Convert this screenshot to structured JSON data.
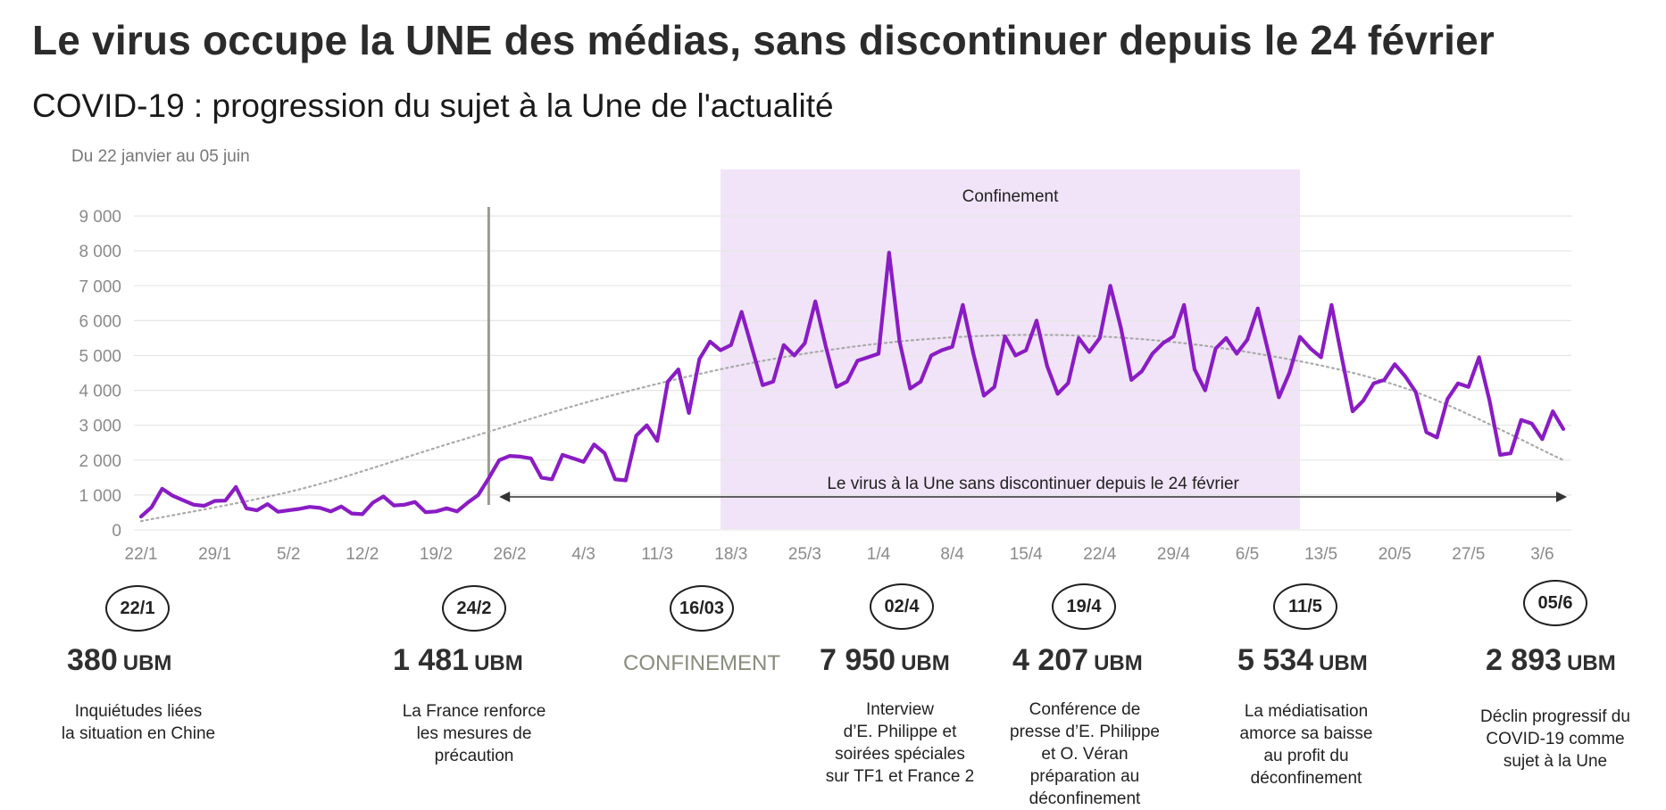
{
  "title": "Le virus occupe la UNE des médias, sans discontinuer depuis le 24 février",
  "subtitle": "COVID-19 : progression du sujet à la Une de l'actualité",
  "period": "Du 22 janvier au 05 juin",
  "colors": {
    "line": "#8a1cc4",
    "band": "#f1e4f8",
    "trend": "#aaaaaa",
    "marker": "#9b9b8f",
    "grid": "#e6e6e6"
  },
  "chart_data": {
    "type": "line",
    "title": "COVID-19 : progression du sujet à la Une de l'actualité",
    "xlabel": "",
    "ylabel": "",
    "ylim": [
      0,
      9000
    ],
    "y_ticks": [
      "0",
      "1 000",
      "2 000",
      "3 000",
      "4 000",
      "5 000",
      "6 000",
      "7 000",
      "8 000",
      "9 000"
    ],
    "x_start": "22/1",
    "x_ticks": [
      "22/1",
      "29/1",
      "5/2",
      "12/2",
      "19/2",
      "26/2",
      "4/3",
      "11/3",
      "18/3",
      "25/3",
      "1/4",
      "8/4",
      "15/4",
      "22/4",
      "29/4",
      "6/5",
      "13/5",
      "20/5",
      "27/5",
      "3/6"
    ],
    "grid": true,
    "band": {
      "label": "Confinement",
      "from_day": 55,
      "to_day": 110
    },
    "vertical_marker_day": 33,
    "arrow": {
      "label": "Le virus à la Une sans discontinuer depuis le 24 février",
      "from_day": 34,
      "to_day": 135
    },
    "series": [
      {
        "name": "",
        "values": [
          380,
          650,
          1180,
          980,
          850,
          720,
          690,
          830,
          840,
          1230,
          620,
          560,
          740,
          520,
          560,
          600,
          660,
          630,
          530,
          670,
          470,
          450,
          780,
          960,
          700,
          720,
          800,
          510,
          530,
          620,
          530,
          780,
          1000,
          1481,
          2000,
          2120,
          2100,
          2050,
          1500,
          1450,
          2150,
          2050,
          1950,
          2450,
          2200,
          1450,
          1420,
          2700,
          3000,
          2550,
          4250,
          4600,
          3350,
          4900,
          5400,
          5150,
          5300,
          6250,
          5200,
          4150,
          4250,
          5300,
          5000,
          5350,
          6550,
          5250,
          4100,
          4250,
          4850,
          4950,
          5050,
          7950,
          5400,
          4050,
          4250,
          5000,
          5150,
          5250,
          6450,
          5050,
          3850,
          4100,
          5550,
          5000,
          5150,
          6000,
          4700,
          3900,
          4207,
          5500,
          5100,
          5500,
          7000,
          5800,
          4300,
          4550,
          5050,
          5350,
          5550,
          6450,
          4600,
          4000,
          5200,
          5500,
          5050,
          5450,
          6350,
          5100,
          3800,
          4500,
          5534,
          5200,
          4950,
          6450,
          4900,
          3400,
          3700,
          4200,
          4300,
          4750,
          4400,
          3950,
          2800,
          2650,
          3750,
          4200,
          4100,
          4950,
          3700,
          2150,
          2200,
          3150,
          3050,
          2600,
          3400,
          2893
        ]
      },
      {
        "name": "",
        "values": [
          250,
          1160,
          2540,
          3880,
          4900,
          5480,
          5560,
          5100,
          4060,
          2000
        ],
        "days": [
          0,
          15,
          30,
          45,
          60,
          75,
          90,
          105,
          120,
          135
        ]
      }
    ]
  },
  "milestones": [
    {
      "date": "22/1",
      "value": "380",
      "unit": "UBM",
      "desc": [
        "Inquiétudes liées",
        "la situation en Chine"
      ]
    },
    {
      "date": "24/2",
      "value": "1 481",
      "unit": "UBM",
      "desc": [
        "La France renforce",
        "les mesures de",
        "précaution"
      ]
    },
    {
      "date": "16/03",
      "value": "",
      "unit": "",
      "label": "CONFINEMENT",
      "desc": []
    },
    {
      "date": "02/4",
      "value": "7 950",
      "unit": "UBM",
      "desc": [
        "Interview",
        "d’E. Philippe et",
        "soirées spéciales",
        "sur TF1 et France 2"
      ]
    },
    {
      "date": "19/4",
      "value": "4 207",
      "unit": "UBM",
      "desc": [
        "Conférence de",
        "presse d’E. Philippe",
        "et O. Véran",
        "préparation au",
        "déconfinement"
      ]
    },
    {
      "date": "11/5",
      "value": "5 534",
      "unit": "UBM",
      "desc": [
        "La médiatisation",
        "amorce sa baisse",
        "au profit du",
        "déconfinement"
      ]
    },
    {
      "date": "05/6",
      "value": "2 893",
      "unit": "UBM",
      "desc": [
        "Déclin progressif du",
        "COVID-19 comme",
        "sujet à la Une"
      ]
    }
  ]
}
